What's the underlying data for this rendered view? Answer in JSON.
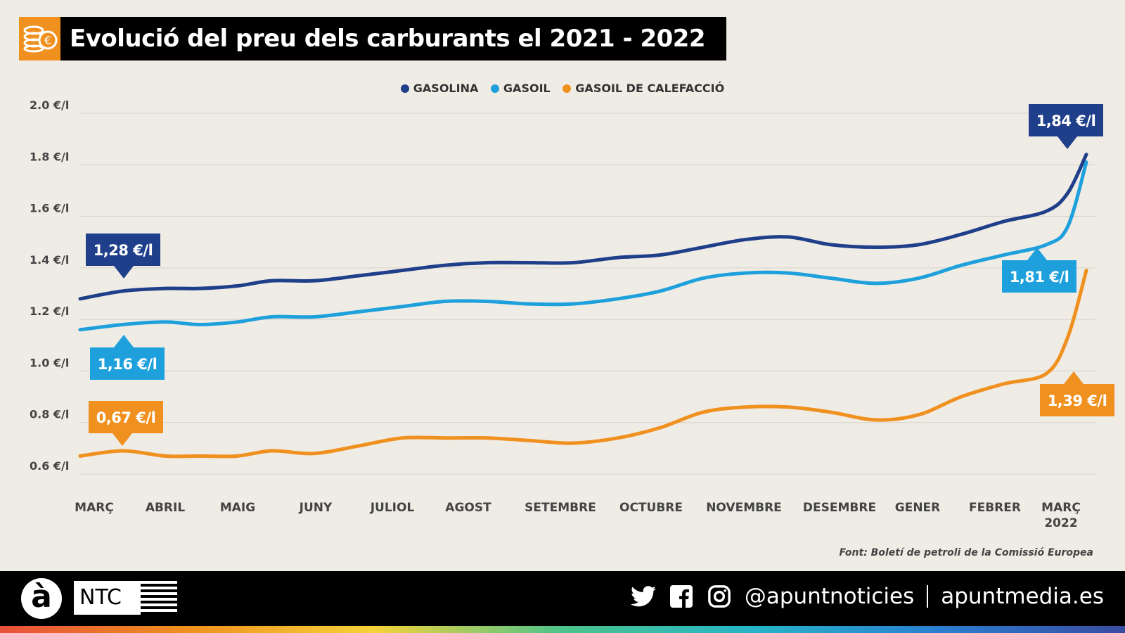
{
  "title": "Evolució del preu dels carburants el 2021 - 2022",
  "source": "Font: Boletí de petroli de la Comissió Europea",
  "footer": {
    "logo_a": "à",
    "logo_ntc": "NTC",
    "handle": "@apuntnoticies",
    "site": "apuntmedia.es",
    "icons": [
      "twitter-icon",
      "facebook-icon",
      "instagram-icon"
    ]
  },
  "colors": {
    "gasolina": "#1f3f8a",
    "gasoil": "#1ea0dc",
    "calefaccio": "#f0901e",
    "background": "#efece5"
  },
  "chart_data": {
    "type": "line",
    "title": "Evolució del preu dels carburants el 2021 - 2022",
    "legend_position": "top-center",
    "grid": true,
    "ylim": [
      0.6,
      2.0
    ],
    "y_ticks": [
      "0.6 €/l",
      "0.8 €/l",
      "1.0 €/l",
      "1.2 €/l",
      "1.4 €/l",
      "1.6 €/l",
      "1.8 €/l",
      "2.0 €/l"
    ],
    "y_tick_values": [
      0.6,
      0.8,
      1.0,
      1.2,
      1.4,
      1.6,
      1.8,
      2.0
    ],
    "x_tick_labels": [
      "MARÇ",
      "ABRIL",
      "MAIG",
      "JUNY",
      "JULIOL",
      "AGOST",
      "SETEMBRE",
      "OCTUBRE",
      "NOVEMBRE",
      "DESEMBRE",
      "GENER",
      "FEBRER",
      "MARÇ 2022"
    ],
    "x": [
      "2021-03-01",
      "2021-03-17",
      "2021-04-02",
      "2021-04-15",
      "2021-04-29",
      "2021-05-12",
      "2021-05-28",
      "2021-06-14",
      "2021-06-30",
      "2021-07-16",
      "2021-08-01",
      "2021-08-17",
      "2021-09-02",
      "2021-09-19",
      "2021-10-05",
      "2021-10-21",
      "2021-11-06",
      "2021-11-22",
      "2021-12-08",
      "2021-12-25",
      "2022-01-10",
      "2022-01-26",
      "2022-02-11",
      "2022-02-27",
      "2022-03-07",
      "2022-03-14"
    ],
    "series": [
      {
        "name": "GASOLINA",
        "color": "#1f3f8a",
        "values": [
          1.28,
          1.31,
          1.32,
          1.32,
          1.33,
          1.35,
          1.35,
          1.37,
          1.39,
          1.41,
          1.42,
          1.42,
          1.42,
          1.44,
          1.45,
          1.48,
          1.51,
          1.52,
          1.49,
          1.48,
          1.49,
          1.53,
          1.58,
          1.62,
          1.69,
          1.84
        ]
      },
      {
        "name": "GASOIL",
        "color": "#1ea0dc",
        "values": [
          1.16,
          1.18,
          1.19,
          1.18,
          1.19,
          1.21,
          1.21,
          1.23,
          1.25,
          1.27,
          1.27,
          1.26,
          1.26,
          1.28,
          1.31,
          1.36,
          1.38,
          1.38,
          1.36,
          1.34,
          1.36,
          1.41,
          1.45,
          1.49,
          1.56,
          1.81
        ]
      },
      {
        "name": "GASOIL DE CALEFACCIÓ",
        "color": "#f0901e",
        "values": [
          0.67,
          0.69,
          0.67,
          0.67,
          0.67,
          0.69,
          0.68,
          0.71,
          0.74,
          0.74,
          0.74,
          0.73,
          0.72,
          0.74,
          0.78,
          0.84,
          0.86,
          0.86,
          0.84,
          0.81,
          0.83,
          0.9,
          0.95,
          0.99,
          1.13,
          1.39
        ]
      }
    ],
    "annotations": [
      {
        "text": "1,28 €/l",
        "series": "GASOLINA",
        "at": "start"
      },
      {
        "text": "1,16 €/l",
        "series": "GASOIL",
        "at": "start"
      },
      {
        "text": "0,67 €/l",
        "series": "GASOIL DE CALEFACCIÓ",
        "at": "start"
      },
      {
        "text": "1,84 €/l",
        "series": "GASOLINA",
        "at": "end"
      },
      {
        "text": "1,81 €/l",
        "series": "GASOIL",
        "at": "end"
      },
      {
        "text": "1,39 €/l",
        "series": "GASOIL DE CALEFACCIÓ",
        "at": "end"
      }
    ]
  }
}
